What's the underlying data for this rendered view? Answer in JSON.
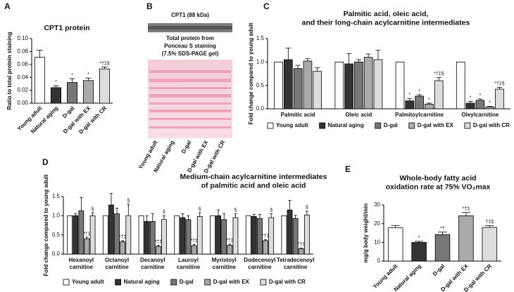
{
  "chart_data": [
    {
      "type": "bar",
      "panel": "A",
      "title": [
        "CPT1 protein"
      ],
      "y_label": "Ratio to total protein staining",
      "categories": [
        "Young adult",
        "Natural aging",
        "D-gal",
        "D-gal with EX",
        "D-gal with CR"
      ],
      "values": [
        0.071,
        0.024,
        0.032,
        0.035,
        0.053
      ],
      "errors": [
        0.011,
        0.003,
        0.006,
        0.004,
        0.003
      ],
      "annotations": [
        null,
        "*",
        "*",
        "*",
        "*†‡§"
      ],
      "colors": [
        "#ffffff",
        "#333333",
        "#777777",
        "#aaaaaa",
        "#dddddd"
      ],
      "ylim": [
        0,
        0.1
      ],
      "yticks": [
        {
          "value": 0,
          "label": "0.00"
        },
        {
          "value": 0.02,
          "label": "0.02"
        },
        {
          "value": 0.04,
          "label": "0.04"
        },
        {
          "value": 0.06,
          "label": "0.06"
        },
        {
          "value": 0.08,
          "label": "0.08"
        },
        {
          "value": 0.1,
          "label": "0.10"
        }
      ]
    },
    {
      "type": "grouped_bar",
      "panel": "C",
      "title": [
        "Palmitic acid, oleic acid,",
        "and their long-chain acylcarnitine intermediates"
      ],
      "y_label": "Fold change compared to young adult",
      "categories": [
        [
          "Palmitic acid"
        ],
        [
          "Oleic acid"
        ],
        [
          "Palmitoylcarnitine"
        ],
        [
          "Oleylcarnitine"
        ]
      ],
      "series": [
        {
          "name": "Young adult",
          "color": "#ffffff",
          "values": [
            1.0,
            1.0,
            1.0,
            1.0
          ],
          "errors": [
            null,
            null,
            null,
            null
          ],
          "annotations": [
            null,
            null,
            null,
            null
          ]
        },
        {
          "name": "Natural aging",
          "color": "#333333",
          "values": [
            1.05,
            0.96,
            0.17,
            0.12
          ],
          "errors": [
            0.25,
            0.22,
            0.05,
            0.04
          ],
          "annotations": [
            null,
            null,
            "*",
            "*"
          ]
        },
        {
          "name": "D-gal",
          "color": "#777777",
          "values": [
            0.86,
            1.0,
            0.27,
            0.18
          ],
          "errors": [
            0.07,
            0.05,
            0.03,
            0.03
          ],
          "annotations": [
            null,
            null,
            "*",
            "*"
          ]
        },
        {
          "name": "D-gal with EX",
          "color": "#aaaaaa",
          "values": [
            1.02,
            1.1,
            0.1,
            0.04
          ],
          "errors": [
            0.05,
            0.07,
            0.02,
            0.01
          ],
          "annotations": [
            null,
            null,
            "*",
            "*"
          ]
        },
        {
          "name": "D-gal with CR",
          "color": "#dddddd",
          "values": [
            0.8,
            1.05,
            0.6,
            0.42
          ],
          "errors": [
            0.08,
            0.2,
            0.07,
            0.04
          ],
          "annotations": [
            null,
            null,
            "*†‡§",
            "*†‡§"
          ]
        }
      ],
      "ylim": [
        0,
        1.5
      ],
      "yticks": [
        {
          "value": 0,
          "label": "0.0"
        },
        {
          "value": 0.5,
          "label": "0.5"
        },
        {
          "value": 1,
          "label": "1.0"
        },
        {
          "value": 1.5,
          "label": "1.5"
        }
      ],
      "legend": "bottom"
    },
    {
      "type": "grouped_bar",
      "panel": "D",
      "title": [
        "Medium-chain acylcarnitine intermediates",
        "of palmitic acid and oleic acid"
      ],
      "y_label": "Fold change compared to young adult",
      "categories": [
        [
          "Hexanoyl",
          "carnitine"
        ],
        [
          "Octanoyl",
          "carnitine"
        ],
        [
          "Decanoyl",
          "carnitine"
        ],
        [
          "Lauroyl",
          "carnitine"
        ],
        [
          "Myristoyl",
          "carnitine"
        ],
        [
          "Dodecenoyl",
          "carnitine"
        ],
        [
          "Tetradecenoyl",
          "carnitine"
        ]
      ],
      "series": [
        {
          "name": "Young adult",
          "color": "#ffffff",
          "values": [
            1.0,
            1.0,
            1.0,
            1.0,
            1.0,
            1.0,
            1.0
          ],
          "errors": [
            null,
            null,
            null,
            null,
            null,
            null,
            null
          ],
          "annotations": [
            null,
            null,
            null,
            null,
            null,
            null,
            null
          ]
        },
        {
          "name": "Natural aging",
          "color": "#333333",
          "values": [
            1.0,
            1.28,
            0.85,
            0.95,
            1.0,
            0.98,
            1.15
          ],
          "errors": [
            0.05,
            0.3,
            0.15,
            0.1,
            0.15,
            0.05,
            0.25
          ],
          "annotations": [
            null,
            null,
            null,
            null,
            null,
            null,
            null
          ]
        },
        {
          "name": "D-gal",
          "color": "#777777",
          "values": [
            1.13,
            1.05,
            0.85,
            0.9,
            0.9,
            0.93,
            0.93
          ],
          "errors": [
            0.35,
            0.15,
            0.2,
            0.1,
            0.15,
            0.1,
            0.08
          ],
          "annotations": [
            null,
            null,
            null,
            null,
            null,
            null,
            null
          ]
        },
        {
          "name": "D-gal with EX",
          "color": "#aaaaaa",
          "values": [
            0.4,
            0.32,
            0.2,
            0.22,
            0.23,
            0.35,
            0.14
          ],
          "errors": [
            0.04,
            0.03,
            0.03,
            0.03,
            0.03,
            0.03,
            0.02
          ],
          "annotations": [
            "*†‡",
            "*†‡",
            "*†‡",
            "*†‡",
            "*†‡",
            "*†‡",
            "*†‡"
          ]
        },
        {
          "name": "D-gal with CR",
          "color": "#dddddd",
          "values": [
            1.0,
            1.0,
            0.9,
            0.98,
            0.95,
            0.95,
            1.02
          ],
          "errors": [
            0.08,
            0.3,
            0.1,
            0.1,
            0.1,
            0.1,
            0.1
          ],
          "annotations": [
            "§",
            "§",
            "§",
            "§",
            "§",
            "§",
            "§"
          ]
        }
      ],
      "ylim": [
        0,
        1.5
      ],
      "yticks": [
        {
          "value": 0,
          "label": "0.0"
        },
        {
          "value": 0.5,
          "label": "0.5"
        },
        {
          "value": 1,
          "label": "1.0"
        },
        {
          "value": 1.5,
          "label": "1.5"
        }
      ],
      "legend": "bottom"
    },
    {
      "type": "bar",
      "panel": "E",
      "title": [
        "Whole-body fatty acid",
        "oxidation rate at 75% VO₂max"
      ],
      "y_label": "mg/g body weight/min",
      "categories": [
        "Young adult",
        "Natural aging",
        "D-gal",
        "D-gal with EX",
        "D-gal with CR"
      ],
      "values": [
        17.8,
        10,
        14.2,
        24.2,
        18
      ],
      "errors": [
        1.2,
        0.6,
        1.3,
        1.8,
        1.0
      ],
      "annotations": [
        null,
        "*",
        "*†",
        "*†‡",
        "†‡§"
      ],
      "colors": [
        "#ffffff",
        "#333333",
        "#777777",
        "#aaaaaa",
        "#dddddd"
      ],
      "ylim": [
        0,
        30
      ],
      "yticks": [
        0,
        10,
        20,
        30
      ]
    }
  ],
  "blot": {
    "panel": "B",
    "band_label": "CPT1 (88 kDa)",
    "stain_label": [
      "Total protein from",
      "Ponceau S staining",
      "(7.5% SDS-PAGE gel)"
    ],
    "lanes": [
      "Young adult",
      "Natural aging",
      "D-gal",
      "D-gal with EX",
      "D-gal with CR"
    ]
  }
}
